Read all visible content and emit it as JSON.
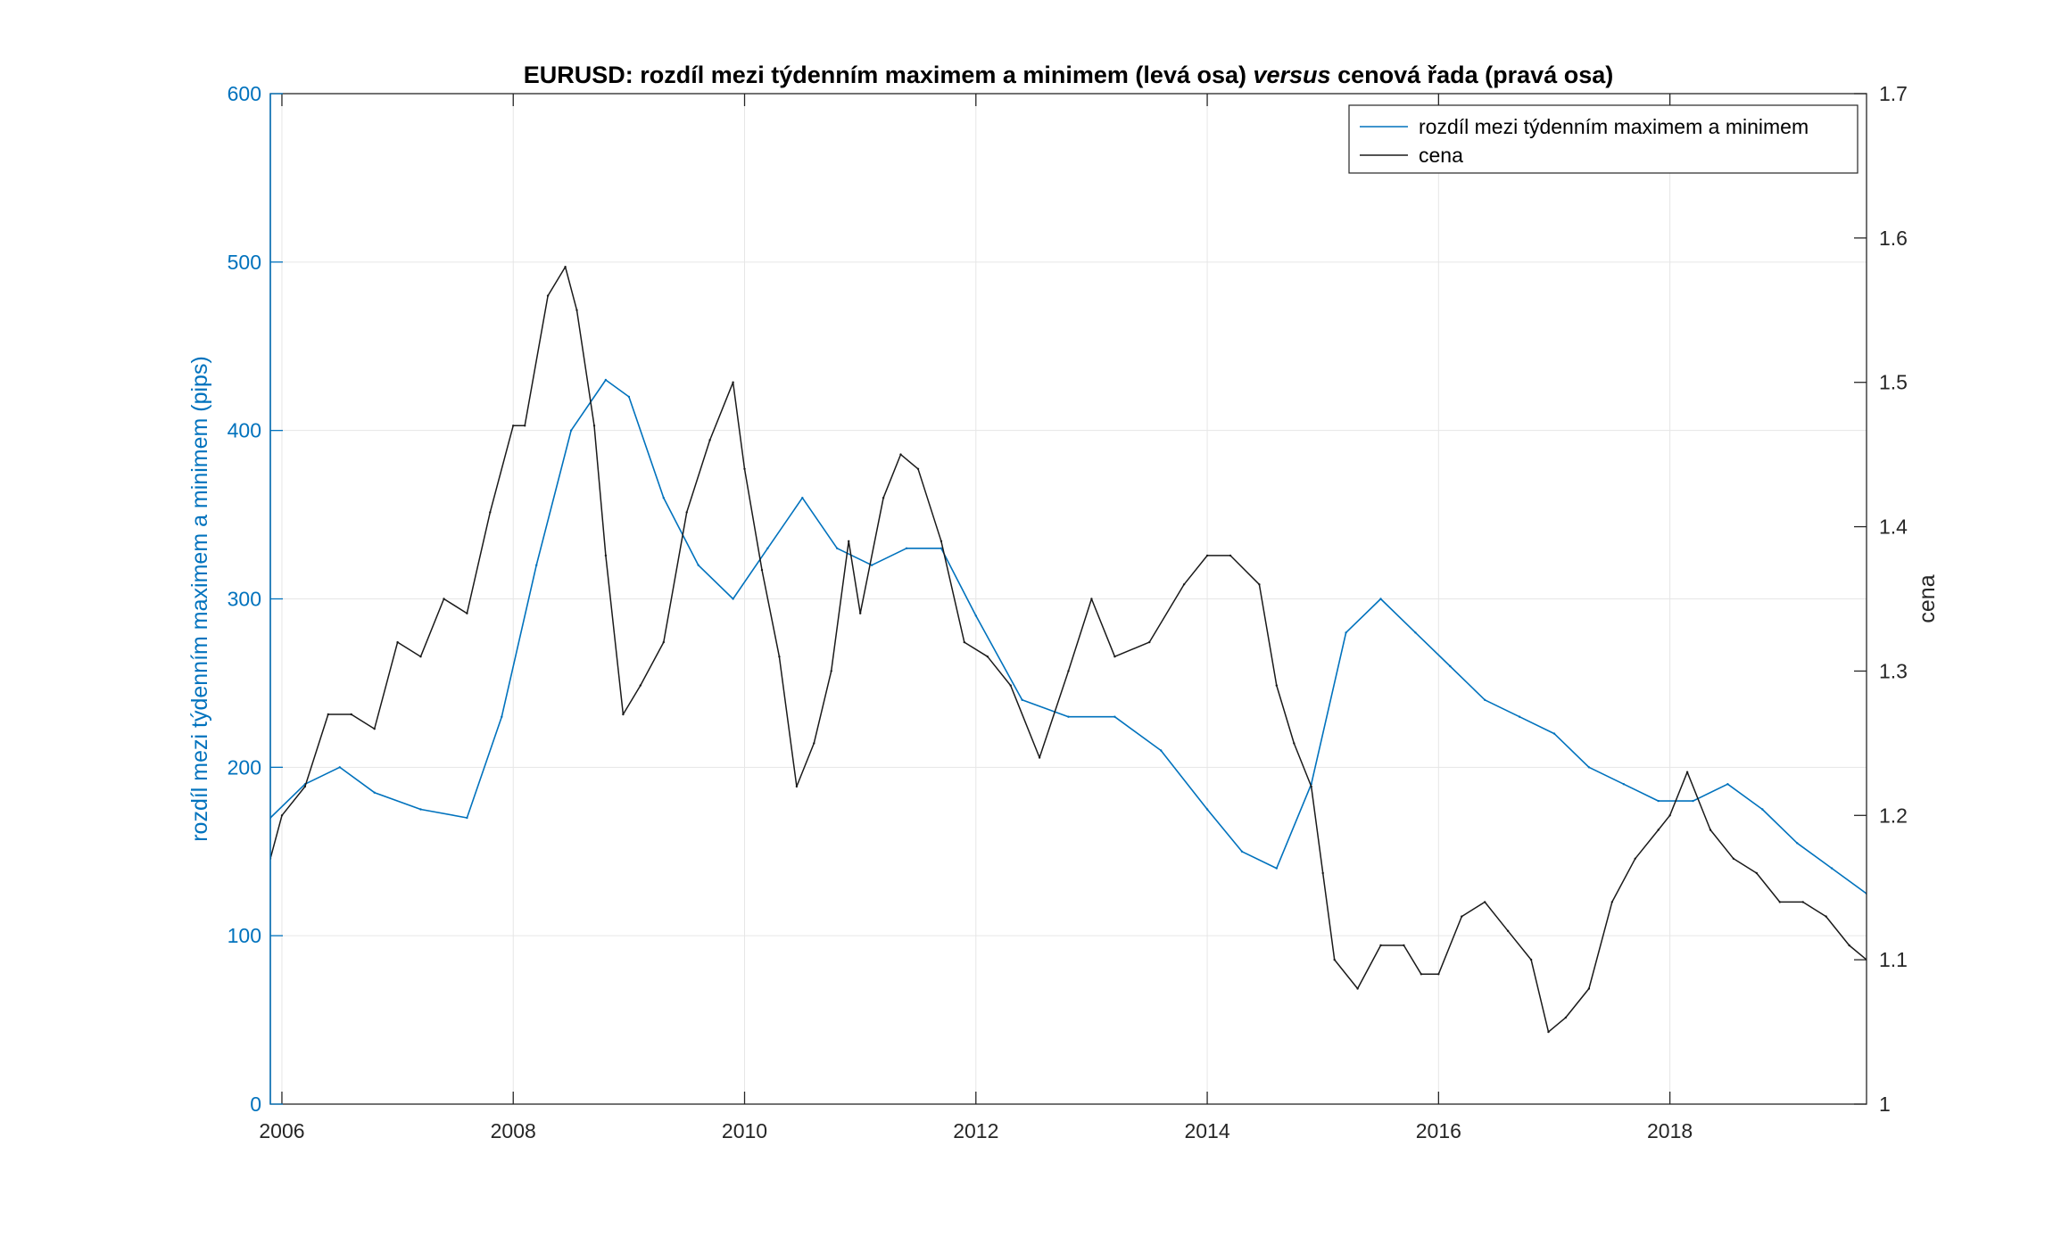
{
  "chart_data": {
    "type": "line",
    "title_parts": [
      {
        "text": "EURUSD:  rozdíl mezi týdenním maximem a minimem (levá osa) ",
        "italic": false
      },
      {
        "text": "versus",
        "italic": true
      },
      {
        "text": " cenová řada (pravá osa)",
        "italic": false
      }
    ],
    "xlabel": "",
    "ylabel_left": "rozdíl mezi týdenním maximem a minimem (pips)",
    "ylabel_right": "cena",
    "xlim": [
      2005.9,
      2019.7
    ],
    "ylim_left": [
      0,
      600
    ],
    "ylim_right": [
      1.0,
      1.7
    ],
    "x_ticks": [
      2006,
      2008,
      2010,
      2012,
      2014,
      2016,
      2018
    ],
    "x_tick_labels": [
      "2006",
      "2008",
      "2010",
      "2012",
      "2014",
      "2016",
      "2018"
    ],
    "y_left_ticks": [
      0,
      100,
      200,
      300,
      400,
      500,
      600
    ],
    "y_left_tick_labels": [
      "0",
      "100",
      "200",
      "300",
      "400",
      "500",
      "600"
    ],
    "y_right_ticks": [
      1.0,
      1.1,
      1.2,
      1.3,
      1.4,
      1.5,
      1.6,
      1.7
    ],
    "y_right_tick_labels": [
      "1",
      "1.1",
      "1.2",
      "1.3",
      "1.4",
      "1.5",
      "1.6",
      "1.7"
    ],
    "grid": true,
    "legend_position": "top-right",
    "colors": {
      "range": "#0072BD",
      "price": "#1a1a1a",
      "left_axis": "#0072BD",
      "right_axis": "#262626"
    },
    "series": [
      {
        "name": "rozdíl mezi týdenním maximem a minimem",
        "axis": "left",
        "x": [
          2005.9,
          2006.2,
          2006.5,
          2006.8,
          2007.2,
          2007.6,
          2007.9,
          2008.2,
          2008.5,
          2008.8,
          2009.0,
          2009.3,
          2009.6,
          2009.9,
          2010.2,
          2010.5,
          2010.8,
          2011.1,
          2011.4,
          2011.7,
          2012.0,
          2012.4,
          2012.8,
          2013.2,
          2013.6,
          2014.0,
          2014.3,
          2014.6,
          2014.9,
          2015.2,
          2015.5,
          2015.8,
          2016.1,
          2016.4,
          2016.7,
          2017.0,
          2017.3,
          2017.6,
          2017.9,
          2018.2,
          2018.5,
          2018.8,
          2019.1,
          2019.4,
          2019.7
        ],
        "values": [
          170,
          190,
          200,
          185,
          175,
          170,
          230,
          320,
          400,
          430,
          420,
          360,
          320,
          300,
          330,
          360,
          330,
          320,
          330,
          330,
          290,
          240,
          230,
          230,
          210,
          175,
          150,
          140,
          190,
          280,
          300,
          280,
          260,
          240,
          230,
          220,
          200,
          190,
          180,
          180,
          190,
          175,
          155,
          140,
          125
        ]
      },
      {
        "name": "cena",
        "axis": "right",
        "x": [
          2005.9,
          2006.0,
          2006.2,
          2006.4,
          2006.6,
          2006.8,
          2007.0,
          2007.2,
          2007.4,
          2007.6,
          2007.8,
          2008.0,
          2008.1,
          2008.3,
          2008.45,
          2008.55,
          2008.7,
          2008.8,
          2008.95,
          2009.1,
          2009.3,
          2009.5,
          2009.7,
          2009.9,
          2010.0,
          2010.15,
          2010.3,
          2010.45,
          2010.6,
          2010.75,
          2010.9,
          2011.0,
          2011.2,
          2011.35,
          2011.5,
          2011.7,
          2011.9,
          2012.1,
          2012.3,
          2012.55,
          2012.8,
          2013.0,
          2013.2,
          2013.5,
          2013.8,
          2014.0,
          2014.2,
          2014.45,
          2014.6,
          2014.75,
          2014.9,
          2015.0,
          2015.1,
          2015.3,
          2015.5,
          2015.7,
          2015.85,
          2016.0,
          2016.2,
          2016.4,
          2016.6,
          2016.8,
          2016.95,
          2017.1,
          2017.3,
          2017.5,
          2017.7,
          2017.9,
          2018.0,
          2018.15,
          2018.35,
          2018.55,
          2018.75,
          2018.95,
          2019.15,
          2019.35,
          2019.55,
          2019.7
        ],
        "values": [
          1.17,
          1.2,
          1.22,
          1.27,
          1.27,
          1.26,
          1.32,
          1.31,
          1.35,
          1.34,
          1.41,
          1.47,
          1.47,
          1.56,
          1.58,
          1.55,
          1.47,
          1.38,
          1.27,
          1.29,
          1.32,
          1.41,
          1.46,
          1.5,
          1.44,
          1.37,
          1.31,
          1.22,
          1.25,
          1.3,
          1.39,
          1.34,
          1.42,
          1.45,
          1.44,
          1.39,
          1.32,
          1.31,
          1.29,
          1.24,
          1.3,
          1.35,
          1.31,
          1.32,
          1.36,
          1.38,
          1.38,
          1.36,
          1.29,
          1.25,
          1.22,
          1.16,
          1.1,
          1.08,
          1.11,
          1.11,
          1.09,
          1.09,
          1.13,
          1.14,
          1.12,
          1.1,
          1.05,
          1.06,
          1.08,
          1.14,
          1.17,
          1.19,
          1.2,
          1.23,
          1.19,
          1.17,
          1.16,
          1.14,
          1.14,
          1.13,
          1.11,
          1.1
        ]
      }
    ]
  }
}
